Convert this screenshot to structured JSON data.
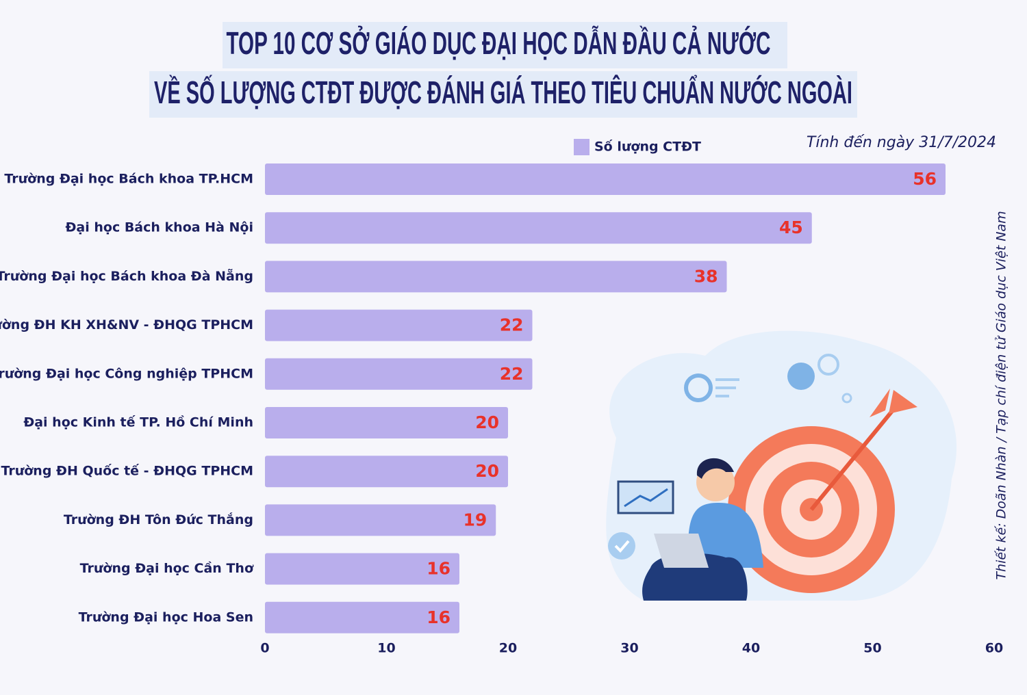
{
  "chart_data": {
    "type": "bar",
    "orientation": "horizontal",
    "title": [
      "TOP 10 CƠ SỞ GIÁO DỤC ĐẠI HỌC DẪN ĐẦU CẢ NƯỚC",
      "VỀ SỐ LƯỢNG CTĐT ĐƯỢC ĐÁNH GIÁ THEO TIÊU CHUẨN NƯỚC NGOÀI"
    ],
    "note": "Tính đến ngày 31/7/2024",
    "credit": "Thiết kế: Doãn Nhàn / Tạp chí điện tử Giáo dục Việt Nam",
    "categories": [
      "Trường Đại học Bách khoa TP.HCM",
      "Đại học Bách khoa Hà Nội",
      "Trường Đại học Bách khoa Đà Nẵng",
      "Trường ĐH KH XH&NV - ĐHQG TPHCM",
      "Trường Đại học Công nghiệp TPHCM",
      "Đại học Kinh tế TP. Hồ Chí Minh",
      "Trường ĐH Quốc tế - ĐHQG TPHCM",
      "Trường ĐH Tôn Đức Thắng",
      "Trường Đại học Cần Thơ",
      "Trường Đại học Hoa Sen"
    ],
    "series": [
      {
        "name": "Số lượng CTĐT",
        "color": "#b9aeec",
        "values": [
          56,
          45,
          38,
          22,
          22,
          20,
          20,
          19,
          16,
          16
        ]
      }
    ],
    "value_label_color": "#e8322a",
    "xlim": [
      0,
      60
    ],
    "xticks": [
      0,
      10,
      20,
      30,
      40,
      50,
      60
    ],
    "grid": false
  }
}
